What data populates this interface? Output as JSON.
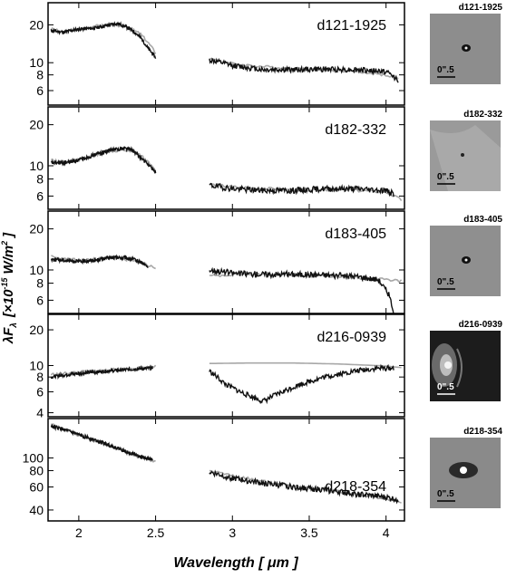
{
  "figure": {
    "ylabel": "λF_λ [×10^-15 W/m²]",
    "ylabel_main": "λF",
    "ylabel_sub": "λ",
    "ylabel_bracket": "[×10",
    "ylabel_exp": "-15",
    "ylabel_unit": "W/m",
    "ylabel_sq": "2",
    "ylabel_close": "]",
    "xlabel": "Wavelength [ μm ]",
    "scale_label": "0\".5"
  },
  "colors": {
    "observed": "#111111",
    "model": "#a8a8a8",
    "frame": "#000000"
  },
  "chart_data": [
    {
      "type": "line",
      "name": "d121-1925",
      "x_range": [
        1.8,
        4.12
      ],
      "y_scale": "log",
      "ylim": [
        4.6,
        30
      ],
      "yticks": [
        6,
        8,
        10,
        20
      ],
      "ytick_labels": [
        "6",
        "8",
        "10",
        "20"
      ],
      "xticks": [
        2,
        2.5,
        3,
        3.5,
        4
      ],
      "series": [
        {
          "segment": "K",
          "x": [
            1.82,
            1.9,
            2.0,
            2.1,
            2.2,
            2.25,
            2.3,
            2.35,
            2.4,
            2.45,
            2.5
          ],
          "y": [
            18,
            17.5,
            18.5,
            18.8,
            20,
            20.5,
            19.5,
            18,
            16,
            13,
            11
          ]
        },
        {
          "segment": "L",
          "x": [
            2.85,
            3.0,
            3.2,
            3.4,
            3.6,
            3.8,
            4.0,
            4.08
          ],
          "y": [
            10.5,
            9.5,
            8.8,
            8.8,
            8.9,
            8.8,
            8.5,
            7.3
          ]
        }
      ],
      "model": [
        {
          "x": [
            1.82,
            1.9,
            2.0,
            2.1,
            2.2,
            2.3,
            2.4,
            2.5
          ],
          "y": [
            18.5,
            17.5,
            18.5,
            19.5,
            20,
            19.5,
            17,
            12
          ]
        },
        {
          "x": [
            2.85,
            3.0,
            3.2,
            3.4,
            3.6,
            3.8,
            4.0,
            4.08
          ],
          "y": [
            10.8,
            9.8,
            9.3,
            9.0,
            8.8,
            8.5,
            8.0,
            7.4
          ]
        }
      ]
    },
    {
      "type": "line",
      "name": "d182-332",
      "x_range": [
        1.8,
        4.12
      ],
      "y_scale": "log",
      "ylim": [
        4.8,
        27
      ],
      "yticks": [
        6,
        8,
        10,
        20
      ],
      "ytick_labels": [
        "6",
        "8",
        "10",
        "20"
      ],
      "xticks": [
        2,
        2.5,
        3,
        3.5,
        4
      ],
      "series": [
        {
          "segment": "K",
          "x": [
            1.82,
            1.9,
            2.0,
            2.1,
            2.2,
            2.3,
            2.35,
            2.4,
            2.5
          ],
          "y": [
            10.5,
            10.5,
            11,
            12,
            13,
            13.5,
            13,
            11.5,
            9
          ]
        },
        {
          "segment": "L",
          "x": [
            2.85,
            3.0,
            3.2,
            3.4,
            3.6,
            3.8,
            4.0,
            4.05
          ],
          "y": [
            7.2,
            6.8,
            6.6,
            6.6,
            6.8,
            6.8,
            6.6,
            6.2
          ]
        }
      ],
      "model": [
        {
          "x": [
            1.82,
            1.9,
            2.0,
            2.1,
            2.2,
            2.3,
            2.4,
            2.5
          ],
          "y": [
            11,
            10.6,
            11,
            12,
            12.8,
            13,
            12,
            9.2
          ]
        },
        {
          "x": [
            2.85,
            3.0,
            3.2,
            3.4,
            3.6,
            3.8,
            4.0,
            4.1
          ],
          "y": [
            7.3,
            7.0,
            6.8,
            6.7,
            6.7,
            6.6,
            6.4,
            5.6
          ]
        }
      ]
    },
    {
      "type": "line",
      "name": "d183-405",
      "x_range": [
        1.8,
        4.12
      ],
      "y_scale": "log",
      "ylim": [
        4.8,
        27
      ],
      "yticks": [
        6,
        8,
        10,
        20
      ],
      "ytick_labels": [
        "6",
        "8",
        "10",
        "20"
      ],
      "xticks": [
        2,
        2.5,
        3,
        3.5,
        4
      ],
      "series": [
        {
          "segment": "K",
          "x": [
            1.82,
            1.9,
            2.0,
            2.1,
            2.2,
            2.3,
            2.35,
            2.4,
            2.45
          ],
          "y": [
            12,
            11.8,
            11.5,
            11.8,
            12.3,
            12.3,
            12,
            11.5,
            10.5
          ]
        },
        {
          "segment": "L",
          "x": [
            2.85,
            3.0,
            3.2,
            3.4,
            3.6,
            3.8,
            3.95,
            4.02,
            4.05
          ],
          "y": [
            10,
            9.5,
            9.3,
            9.3,
            9.2,
            9.0,
            8.5,
            6.5,
            4.9
          ]
        }
      ],
      "model": [
        {
          "x": [
            1.82,
            1.9,
            2.0,
            2.1,
            2.2,
            2.3,
            2.4,
            2.5
          ],
          "y": [
            12.5,
            12,
            11.8,
            12,
            12.2,
            12,
            11.3,
            10.3
          ]
        },
        {
          "x": [
            2.85,
            3.0,
            3.2,
            3.4,
            3.6,
            3.8,
            4.0,
            4.1
          ],
          "y": [
            9.0,
            9.3,
            9.3,
            9.2,
            9.0,
            8.8,
            8.5,
            8.3
          ]
        }
      ]
    },
    {
      "type": "line",
      "name": "d216-0939",
      "x_range": [
        1.8,
        4.12
      ],
      "y_scale": "log",
      "ylim": [
        3.7,
        27
      ],
      "yticks": [
        4,
        6,
        8,
        10,
        20
      ],
      "ytick_labels": [
        "4",
        "6",
        "8",
        "10",
        "20"
      ],
      "xticks": [
        2,
        2.5,
        3,
        3.5,
        4
      ],
      "series": [
        {
          "segment": "K",
          "x": [
            1.82,
            1.9,
            2.0,
            2.1,
            2.2,
            2.3,
            2.4,
            2.48
          ],
          "y": [
            8,
            8.3,
            8.6,
            8.8,
            9.0,
            9.2,
            9.4,
            9.5
          ]
        },
        {
          "segment": "L",
          "x": [
            2.85,
            2.95,
            3.05,
            3.15,
            3.2,
            3.3,
            3.45,
            3.6,
            3.8,
            3.95,
            4.05
          ],
          "y": [
            9.0,
            7.0,
            6.0,
            5.3,
            5.0,
            5.8,
            7.0,
            8.0,
            9.0,
            9.5,
            9.5
          ]
        }
      ],
      "model": [
        {
          "x": [
            1.82,
            2.0,
            2.2,
            2.4,
            2.5
          ],
          "y": [
            8.4,
            8.8,
            9.2,
            9.6,
            9.8
          ]
        },
        {
          "x": [
            2.85,
            3.1,
            3.4,
            3.7,
            4.0,
            4.1
          ],
          "y": [
            10.4,
            10.5,
            10.5,
            10.3,
            9.9,
            9.6
          ]
        }
      ]
    },
    {
      "type": "line",
      "name": "d218-354",
      "x_range": [
        1.8,
        4.12
      ],
      "y_scale": "log",
      "ylim": [
        33,
        200
      ],
      "yticks": [
        40,
        60,
        80,
        100
      ],
      "ytick_labels": [
        "40",
        "60",
        "80",
        "100"
      ],
      "xticks": [
        2,
        2.5,
        3,
        3.5,
        4
      ],
      "xtick_labels": [
        "2",
        "2.5",
        "3",
        "3.5",
        "4"
      ],
      "series": [
        {
          "segment": "K",
          "x": [
            1.82,
            1.9,
            2.0,
            2.1,
            2.2,
            2.3,
            2.4,
            2.48
          ],
          "y": [
            175,
            165,
            150,
            138,
            125,
            113,
            102,
            97
          ]
        },
        {
          "segment": "L",
          "x": [
            2.85,
            3.0,
            3.2,
            3.4,
            3.6,
            3.8,
            4.0,
            4.08
          ],
          "y": [
            78,
            70,
            64,
            60,
            57,
            53,
            50,
            48
          ]
        }
      ],
      "model": [
        {
          "x": [
            1.82,
            1.9,
            2.0,
            2.1,
            2.2,
            2.3,
            2.4,
            2.5
          ],
          "y": [
            180,
            165,
            150,
            137,
            124,
            112,
            102,
            94
          ]
        },
        {
          "x": [
            2.85,
            3.0,
            3.2,
            3.4,
            3.6,
            3.8,
            4.0,
            4.1
          ],
          "y": [
            80,
            73,
            66,
            61,
            57,
            53,
            49,
            46
          ]
        }
      ]
    }
  ]
}
